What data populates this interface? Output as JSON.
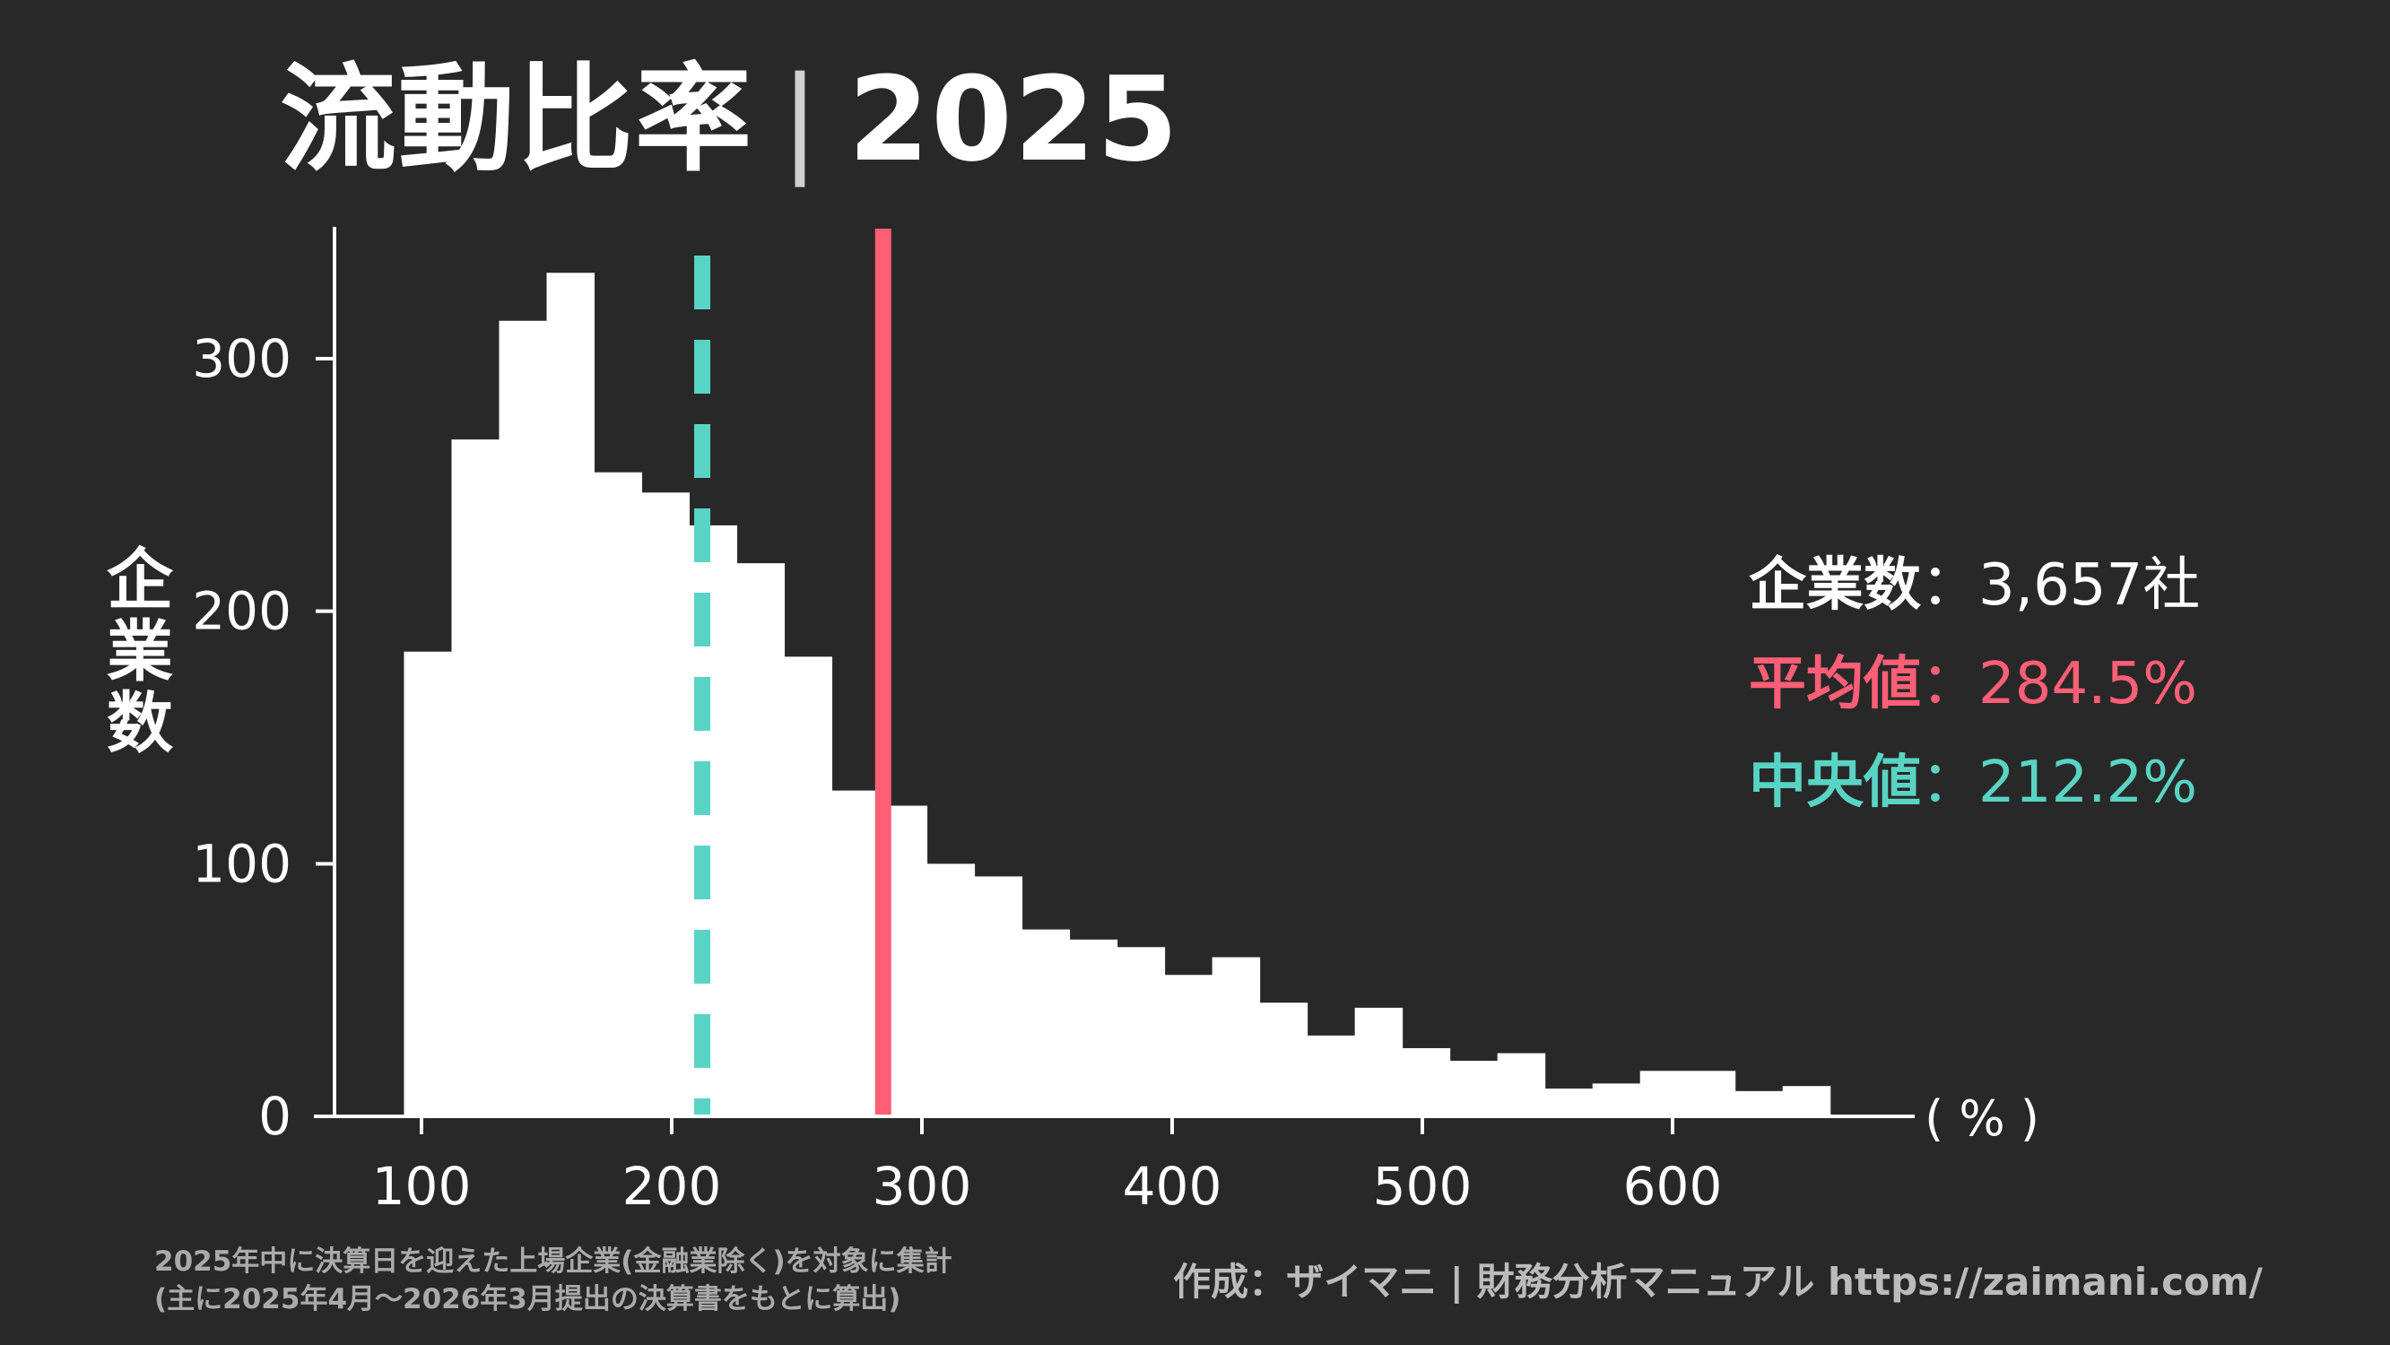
{
  "title": {
    "main": "流動比率",
    "separator": "|",
    "year": "2025"
  },
  "stats": {
    "count_label": "企業数",
    "count_value": "3,657社",
    "mean_label": "平均値",
    "mean_value": "284.5%",
    "median_label": "中央値",
    "median_value": "212.2%",
    "colon": "："
  },
  "footnote": {
    "line1": "2025年中に決算日を迎えた上場企業(金融業除く)を対象に集計",
    "line2": "(主に2025年4月〜2026年3月提出の決算書をもとに算出)"
  },
  "credit": "作成：ザイマニ | 財務分析マニュアル https://zaimani.com/",
  "chart_data": {
    "type": "bar",
    "ylabel": "企業数",
    "xunit": "( % )",
    "xlim": [
      60,
      700
    ],
    "ylim": [
      0,
      350
    ],
    "xticks": [
      100,
      200,
      300,
      400,
      500,
      600
    ],
    "yticks": [
      0,
      100,
      200,
      300
    ],
    "bins": [
      {
        "x0": 93,
        "x1": 112,
        "value": 184
      },
      {
        "x0": 112,
        "x1": 131,
        "value": 268
      },
      {
        "x0": 131,
        "x1": 150,
        "value": 315
      },
      {
        "x0": 150,
        "x1": 169,
        "value": 334
      },
      {
        "x0": 169,
        "x1": 188,
        "value": 255
      },
      {
        "x0": 188,
        "x1": 207,
        "value": 247
      },
      {
        "x0": 207,
        "x1": 226,
        "value": 234
      },
      {
        "x0": 226,
        "x1": 245,
        "value": 219
      },
      {
        "x0": 245,
        "x1": 264,
        "value": 182
      },
      {
        "x0": 264,
        "x1": 283,
        "value": 129
      },
      {
        "x0": 283,
        "x1": 302,
        "value": 123
      },
      {
        "x0": 302,
        "x1": 321,
        "value": 100
      },
      {
        "x0": 321,
        "x1": 340,
        "value": 95
      },
      {
        "x0": 340,
        "x1": 359,
        "value": 74
      },
      {
        "x0": 359,
        "x1": 378,
        "value": 70
      },
      {
        "x0": 378,
        "x1": 397,
        "value": 67
      },
      {
        "x0": 397,
        "x1": 416,
        "value": 56
      },
      {
        "x0": 416,
        "x1": 435,
        "value": 63
      },
      {
        "x0": 435,
        "x1": 454,
        "value": 45
      },
      {
        "x0": 454,
        "x1": 473,
        "value": 32
      },
      {
        "x0": 473,
        "x1": 492,
        "value": 43
      },
      {
        "x0": 492,
        "x1": 511,
        "value": 27
      },
      {
        "x0": 511,
        "x1": 530,
        "value": 22
      },
      {
        "x0": 530,
        "x1": 549,
        "value": 25
      },
      {
        "x0": 549,
        "x1": 568,
        "value": 11
      },
      {
        "x0": 568,
        "x1": 587,
        "value": 13
      },
      {
        "x0": 587,
        "x1": 606,
        "value": 18
      },
      {
        "x0": 606,
        "x1": 625,
        "value": 18
      },
      {
        "x0": 625,
        "x1": 644,
        "value": 10
      },
      {
        "x0": 644,
        "x1": 663,
        "value": 12
      }
    ],
    "mean": 284.5,
    "median": 212.2,
    "colors": {
      "bars": "#ffffff",
      "mean": "#ff5f76",
      "median": "#59d4c4",
      "background": "#282828"
    }
  }
}
